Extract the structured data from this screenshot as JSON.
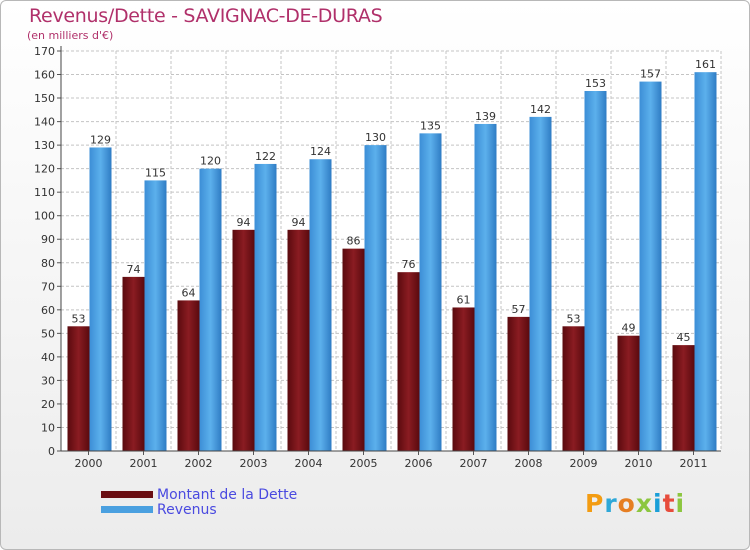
{
  "header": {
    "title": "Revenus/Dette - SAVIGNAC-DE-DURAS",
    "subtitle": "(en milliers d'€)"
  },
  "legend": {
    "items": [
      {
        "label": "Montant de la Dette",
        "color": "#7a1418"
      },
      {
        "label": "Revenus",
        "color": "#4aa0e0"
      }
    ]
  },
  "logo": {
    "text": "Proxiti",
    "colors": [
      "#f39c12",
      "#2ea8d8",
      "#e67e22",
      "#8cc63f",
      "#1a9fd8",
      "#e74c3c",
      "#8cc63f"
    ]
  },
  "chart_data": {
    "type": "bar",
    "title": "Revenus/Dette - SAVIGNAC-DE-DURAS",
    "subtitle": "(en milliers d'€)",
    "categories": [
      "2000",
      "2001",
      "2002",
      "2003",
      "2004",
      "2005",
      "2006",
      "2007",
      "2008",
      "2009",
      "2010",
      "2011"
    ],
    "series": [
      {
        "name": "Montant de la Dette",
        "color": "#7a1418",
        "values": [
          53,
          74,
          64,
          94,
          94,
          86,
          76,
          61,
          57,
          53,
          49,
          45
        ]
      },
      {
        "name": "Revenus",
        "color": "#4aa0e0",
        "values": [
          129,
          115,
          120,
          122,
          124,
          130,
          135,
          139,
          142,
          153,
          157,
          161
        ]
      }
    ],
    "ylim": [
      0,
      170
    ],
    "ytick_step": 10,
    "grid": true,
    "legend_position": "bottom-left"
  }
}
